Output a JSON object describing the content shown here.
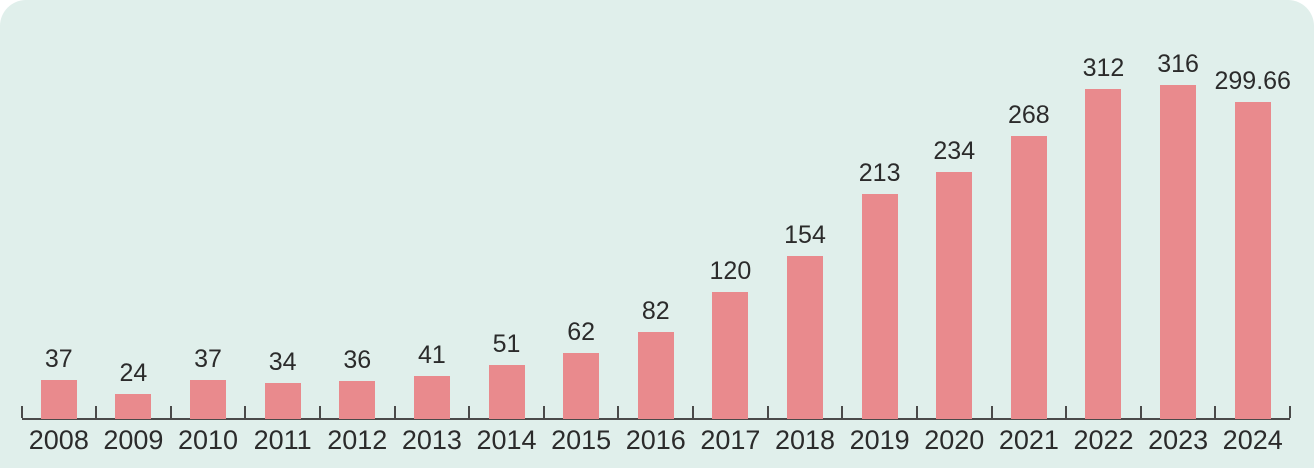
{
  "chart_data": {
    "type": "bar",
    "categories": [
      "2008",
      "2009",
      "2010",
      "2011",
      "2012",
      "2013",
      "2014",
      "2015",
      "2016",
      "2017",
      "2018",
      "2019",
      "2020",
      "2021",
      "2022",
      "2023",
      "2024"
    ],
    "values": [
      37,
      24,
      37,
      34,
      36,
      41,
      51,
      62,
      82,
      120,
      154,
      213,
      234,
      268,
      312,
      316,
      299.66
    ],
    "value_labels": [
      "37",
      "24",
      "37",
      "34",
      "36",
      "41",
      "51",
      "62",
      "82",
      "120",
      "154",
      "213",
      "234",
      "268",
      "312",
      "316",
      "299.66"
    ],
    "title": "",
    "xlabel": "",
    "ylabel": "",
    "ylim": [
      0,
      330
    ],
    "grid": false,
    "legend_position": "none",
    "value_labels_shown": true,
    "tick_direction": "in"
  },
  "style": {
    "bar_color": "#e98a8d",
    "background_color": "#e0efeb",
    "axis_color": "#4a4a4a",
    "label_color": "#2b2b2b"
  }
}
